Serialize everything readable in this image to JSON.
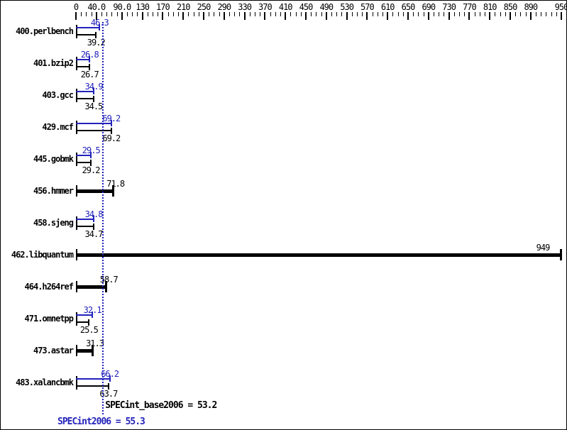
{
  "chart_data": {
    "type": "bar",
    "orientation": "horizontal",
    "axis": {
      "min": 0,
      "max": 950,
      "minor_tick_step": 10,
      "major_ticks": [
        {
          "label": "0",
          "value": 0
        },
        {
          "label": "40.0",
          "value": 40
        },
        {
          "label": "90.0",
          "value": 90
        },
        {
          "label": "130",
          "value": 130
        },
        {
          "label": "170",
          "value": 170
        },
        {
          "label": "210",
          "value": 210
        },
        {
          "label": "250",
          "value": 250
        },
        {
          "label": "290",
          "value": 290
        },
        {
          "label": "330",
          "value": 330
        },
        {
          "label": "370",
          "value": 370
        },
        {
          "label": "410",
          "value": 410
        },
        {
          "label": "450",
          "value": 450
        },
        {
          "label": "490",
          "value": 490
        },
        {
          "label": "530",
          "value": 530
        },
        {
          "label": "570",
          "value": 570
        },
        {
          "label": "610",
          "value": 610
        },
        {
          "label": "650",
          "value": 650
        },
        {
          "label": "690",
          "value": 690
        },
        {
          "label": "730",
          "value": 730
        },
        {
          "label": "770",
          "value": 770
        },
        {
          "label": "810",
          "value": 810
        },
        {
          "label": "850",
          "value": 850
        },
        {
          "label": "890",
          "value": 890
        },
        {
          "label": "950",
          "value": 950
        }
      ]
    },
    "benchmarks": [
      {
        "name": "400.perlbench",
        "style": "double",
        "peak": 46.3,
        "peak_label": "46.3",
        "base": 39.2,
        "base_label": "39.2"
      },
      {
        "name": "401.bzip2",
        "style": "double",
        "peak": 26.8,
        "peak_label": "26.8",
        "base": 26.7,
        "base_label": "26.7"
      },
      {
        "name": "403.gcc",
        "style": "double",
        "peak": 34.9,
        "peak_label": "34.9",
        "base": 34.5,
        "base_label": "34.5"
      },
      {
        "name": "429.mcf",
        "style": "double",
        "peak": 69.2,
        "peak_label": "69.2",
        "base": 69.2,
        "base_label": "69.2"
      },
      {
        "name": "445.gobmk",
        "style": "double",
        "peak": 29.5,
        "peak_label": "29.5",
        "base": 29.2,
        "base_label": "29.2"
      },
      {
        "name": "456.hmmer",
        "style": "single",
        "base": 71.8,
        "base_label": "71.8"
      },
      {
        "name": "458.sjeng",
        "style": "double",
        "peak": 34.8,
        "peak_label": "34.8",
        "base": 34.7,
        "base_label": "34.7"
      },
      {
        "name": "462.libquantum",
        "style": "single",
        "base": 949,
        "base_label": "949"
      },
      {
        "name": "464.h264ref",
        "style": "single",
        "base": 58.7,
        "base_label": "58.7"
      },
      {
        "name": "471.omnetpp",
        "style": "double",
        "peak": 32.1,
        "peak_label": "32.1",
        "base": 25.5,
        "base_label": "25.5"
      },
      {
        "name": "473.astar",
        "style": "single",
        "base": 31.3,
        "base_label": "31.3"
      },
      {
        "name": "483.xalancbmk",
        "style": "double",
        "peak": 66.2,
        "peak_label": "66.2",
        "base": 63.7,
        "base_label": "63.7"
      }
    ],
    "summary": {
      "base_text": "SPECint_base2006 = 53.2",
      "base_value": 53.2,
      "peak_text": "SPECint2006 = 55.3",
      "peak_value": 55.3
    },
    "colors": {
      "peak_blue": "#2222bb",
      "base_black": "#000000",
      "reference_line_blue": "#2222bb",
      "background": "#ffffff"
    }
  }
}
